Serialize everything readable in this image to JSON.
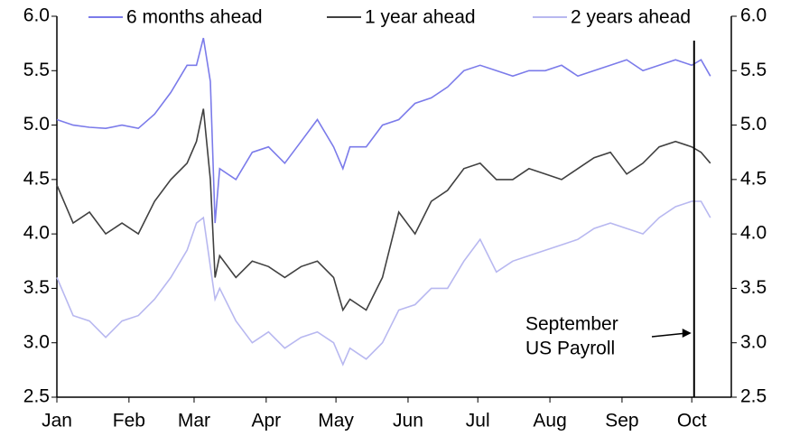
{
  "chart_data": {
    "type": "line",
    "x": [
      0,
      7,
      14,
      21,
      28,
      35,
      42,
      49,
      56,
      60,
      63,
      66,
      68,
      70,
      77,
      84,
      91,
      98,
      105,
      112,
      119,
      123,
      126,
      133,
      140,
      147,
      154,
      161,
      168,
      175,
      182,
      189,
      196,
      203,
      210,
      217,
      224,
      231,
      238,
      245,
      252,
      259,
      266,
      273,
      277,
      281
    ],
    "series": [
      {
        "name": "6 months ahead",
        "color": "#7b7bea",
        "values": [
          5.05,
          5.0,
          4.98,
          4.97,
          5.0,
          4.97,
          5.1,
          5.3,
          5.55,
          5.55,
          5.8,
          5.4,
          4.1,
          4.6,
          4.5,
          4.75,
          4.8,
          4.65,
          4.85,
          5.05,
          4.8,
          4.6,
          4.8,
          4.8,
          5.0,
          5.05,
          5.2,
          5.25,
          5.35,
          5.5,
          5.55,
          5.5,
          5.45,
          5.5,
          5.5,
          5.55,
          5.45,
          5.5,
          5.55,
          5.6,
          5.5,
          5.55,
          5.6,
          5.55,
          5.6,
          5.45
        ]
      },
      {
        "name": "1 year ahead",
        "color": "#404040",
        "values": [
          4.45,
          4.1,
          4.2,
          4.0,
          4.1,
          4.0,
          4.3,
          4.5,
          4.65,
          4.85,
          5.15,
          4.5,
          3.6,
          3.8,
          3.6,
          3.75,
          3.7,
          3.6,
          3.7,
          3.75,
          3.6,
          3.3,
          3.4,
          3.3,
          3.6,
          4.2,
          4.0,
          4.3,
          4.4,
          4.6,
          4.65,
          4.5,
          4.5,
          4.6,
          4.55,
          4.5,
          4.6,
          4.7,
          4.75,
          4.55,
          4.65,
          4.8,
          4.85,
          4.8,
          4.75,
          4.65
        ]
      },
      {
        "name": "2 years ahead",
        "color": "#b8b8f0",
        "values": [
          3.6,
          3.25,
          3.2,
          3.05,
          3.2,
          3.25,
          3.4,
          3.6,
          3.85,
          4.1,
          4.15,
          3.7,
          3.4,
          3.5,
          3.2,
          3.0,
          3.1,
          2.95,
          3.05,
          3.1,
          3.0,
          2.8,
          2.95,
          2.85,
          3.0,
          3.3,
          3.35,
          3.5,
          3.5,
          3.75,
          3.95,
          3.65,
          3.75,
          3.8,
          3.85,
          3.9,
          3.95,
          4.05,
          4.1,
          4.05,
          4.0,
          4.15,
          4.25,
          4.3,
          4.3,
          4.15
        ]
      }
    ],
    "xlim": [
      0,
      290
    ],
    "xticks": [
      {
        "value": 0,
        "label": "Jan"
      },
      {
        "value": 31,
        "label": "Feb"
      },
      {
        "value": 59,
        "label": "Mar"
      },
      {
        "value": 90,
        "label": "Apr"
      },
      {
        "value": 120,
        "label": "May"
      },
      {
        "value": 151,
        "label": "Jun"
      },
      {
        "value": 181,
        "label": "Jul"
      },
      {
        "value": 212,
        "label": "Aug"
      },
      {
        "value": 243,
        "label": "Sep"
      },
      {
        "value": 273,
        "label": "Oct"
      }
    ],
    "ylim": [
      2.5,
      6.0
    ],
    "yticks": [
      {
        "value": 2.5,
        "label": "2.5"
      },
      {
        "value": 3.0,
        "label": "3.0"
      },
      {
        "value": 3.5,
        "label": "3.5"
      },
      {
        "value": 4.0,
        "label": "4.0"
      },
      {
        "value": 4.5,
        "label": "4.5"
      },
      {
        "value": 5.0,
        "label": "5.0"
      },
      {
        "value": 5.5,
        "label": "5.5"
      },
      {
        "value": 6.0,
        "label": "6.0"
      }
    ],
    "y2lim": [
      2.5,
      6.0
    ],
    "y2ticks": [
      {
        "value": 2.5,
        "label": "2.5"
      },
      {
        "value": 3.0,
        "label": "3.0"
      },
      {
        "value": 3.5,
        "label": "3.5"
      },
      {
        "value": 4.0,
        "label": "4.0"
      },
      {
        "value": 4.5,
        "label": "4.5"
      },
      {
        "value": 5.0,
        "label": "5.0"
      },
      {
        "value": 5.5,
        "label": "5.5"
      },
      {
        "value": 6.0,
        "label": "6.0"
      }
    ],
    "annotation": {
      "lines": [
        "September",
        "US Payroll"
      ],
      "x": 274
    }
  }
}
